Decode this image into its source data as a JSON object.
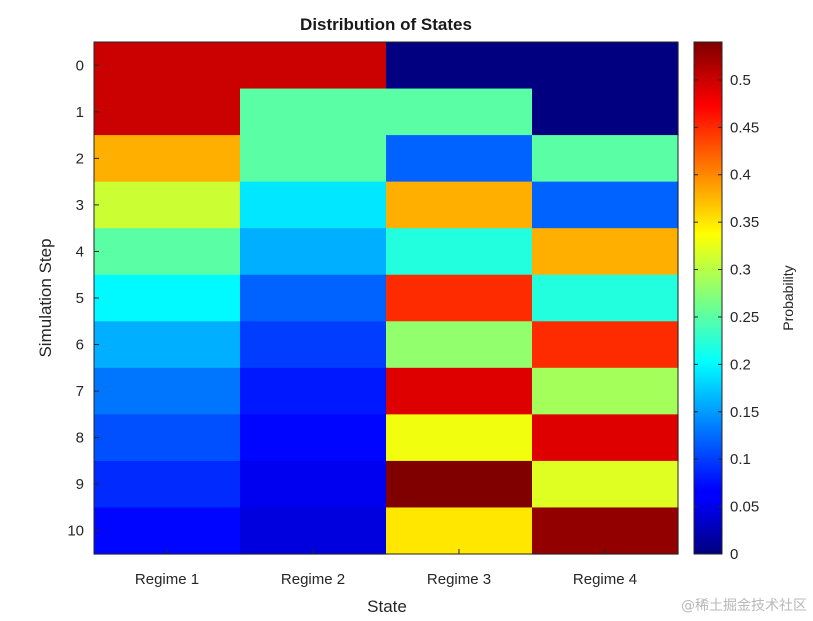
{
  "chart_data": {
    "type": "heatmap",
    "title": "Distribution of States",
    "xlabel": "State",
    "ylabel": "Simulation Step",
    "colorbar_label": "Probability",
    "colormap": "jet",
    "clim": [
      0,
      0.54
    ],
    "colorbar_ticks": [
      0,
      0.05,
      0.1,
      0.15,
      0.2,
      0.25,
      0.3,
      0.35,
      0.4,
      0.45,
      0.5
    ],
    "x_categories": [
      "Regime 1",
      "Regime 2",
      "Regime 3",
      "Regime 4"
    ],
    "y_categories": [
      "0",
      "1",
      "2",
      "3",
      "4",
      "5",
      "6",
      "7",
      "8",
      "9",
      "10"
    ],
    "values": [
      [
        0.5,
        0.5,
        0.0,
        0.0
      ],
      [
        0.5,
        0.25,
        0.25,
        0.0
      ],
      [
        0.38,
        0.25,
        0.12,
        0.25
      ],
      [
        0.31,
        0.19,
        0.38,
        0.12
      ],
      [
        0.25,
        0.16,
        0.22,
        0.38
      ],
      [
        0.2,
        0.12,
        0.45,
        0.22
      ],
      [
        0.16,
        0.1,
        0.28,
        0.45
      ],
      [
        0.13,
        0.08,
        0.49,
        0.29
      ],
      [
        0.11,
        0.07,
        0.33,
        0.49
      ],
      [
        0.09,
        0.06,
        0.54,
        0.32
      ],
      [
        0.07,
        0.05,
        0.35,
        0.53
      ]
    ]
  },
  "watermark": "@稀土掘金技术社区"
}
